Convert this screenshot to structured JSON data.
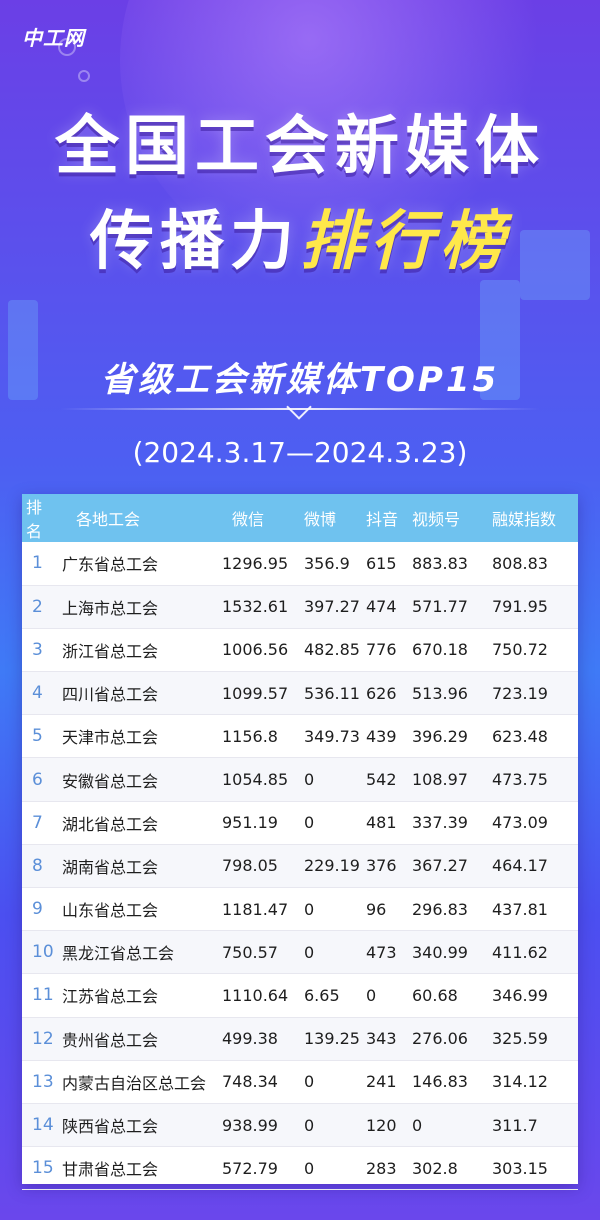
{
  "logo": "中工网",
  "title_line1": "全国工会新媒体",
  "title_line2_plain": "传播力",
  "title_line2_highlight": "排行榜",
  "subtitle": "省级工会新媒体TOP15",
  "date_range": "(2024.3.17—2024.3.23)",
  "colors": {
    "header_bg": "#6fc2ef",
    "highlight": "#ffe84a",
    "rank_text": "#5b8fd8"
  },
  "table": {
    "headers": [
      "排名",
      "各地工会",
      "微信",
      "微博",
      "抖音",
      "视频号",
      "融媒指数"
    ],
    "rows": [
      {
        "rank": "1",
        "name": "广东省总工会",
        "weixin": "1296.95",
        "weibo": "356.9",
        "douyin": "615",
        "shipinhao": "883.83",
        "index": "808.83"
      },
      {
        "rank": "2",
        "name": "上海市总工会",
        "weixin": "1532.61",
        "weibo": "397.27",
        "douyin": "474",
        "shipinhao": "571.77",
        "index": "791.95"
      },
      {
        "rank": "3",
        "name": "浙江省总工会",
        "weixin": "1006.56",
        "weibo": "482.85",
        "douyin": "776",
        "shipinhao": "670.18",
        "index": "750.72"
      },
      {
        "rank": "4",
        "name": "四川省总工会",
        "weixin": "1099.57",
        "weibo": "536.11",
        "douyin": "626",
        "shipinhao": "513.96",
        "index": "723.19"
      },
      {
        "rank": "5",
        "name": "天津市总工会",
        "weixin": "1156.8",
        "weibo": "349.73",
        "douyin": "439",
        "shipinhao": "396.29",
        "index": "623.48"
      },
      {
        "rank": "6",
        "name": "安徽省总工会",
        "weixin": "1054.85",
        "weibo": "0",
        "douyin": "542",
        "shipinhao": "108.97",
        "index": "473.75"
      },
      {
        "rank": "7",
        "name": "湖北省总工会",
        "weixin": "951.19",
        "weibo": "0",
        "douyin": "481",
        "shipinhao": "337.39",
        "index": "473.09"
      },
      {
        "rank": "8",
        "name": "湖南省总工会",
        "weixin": "798.05",
        "weibo": "229.19",
        "douyin": "376",
        "shipinhao": "367.27",
        "index": "464.17"
      },
      {
        "rank": "9",
        "name": "山东省总工会",
        "weixin": "1181.47",
        "weibo": "0",
        "douyin": "96",
        "shipinhao": "296.83",
        "index": "437.81"
      },
      {
        "rank": "10",
        "name": "黑龙江省总工会",
        "weixin": "750.57",
        "weibo": "0",
        "douyin": "473",
        "shipinhao": "340.99",
        "index": "411.62"
      },
      {
        "rank": "11",
        "name": "江苏省总工会",
        "weixin": "1110.64",
        "weibo": "6.65",
        "douyin": "0",
        "shipinhao": "60.68",
        "index": "346.99"
      },
      {
        "rank": "12",
        "name": "贵州省总工会",
        "weixin": "499.38",
        "weibo": "139.25",
        "douyin": "343",
        "shipinhao": "276.06",
        "index": "325.59"
      },
      {
        "rank": "13",
        "name": "内蒙古自治区总工会",
        "weixin": "748.34",
        "weibo": "0",
        "douyin": "241",
        "shipinhao": "146.83",
        "index": "314.12"
      },
      {
        "rank": "14",
        "name": "陕西省总工会",
        "weixin": "938.99",
        "weibo": "0",
        "douyin": "120",
        "shipinhao": "0",
        "index": "311.7"
      },
      {
        "rank": "15",
        "name": "甘肃省总工会",
        "weixin": "572.79",
        "weibo": "0",
        "douyin": "283",
        "shipinhao": "302.8",
        "index": "303.15"
      }
    ]
  }
}
